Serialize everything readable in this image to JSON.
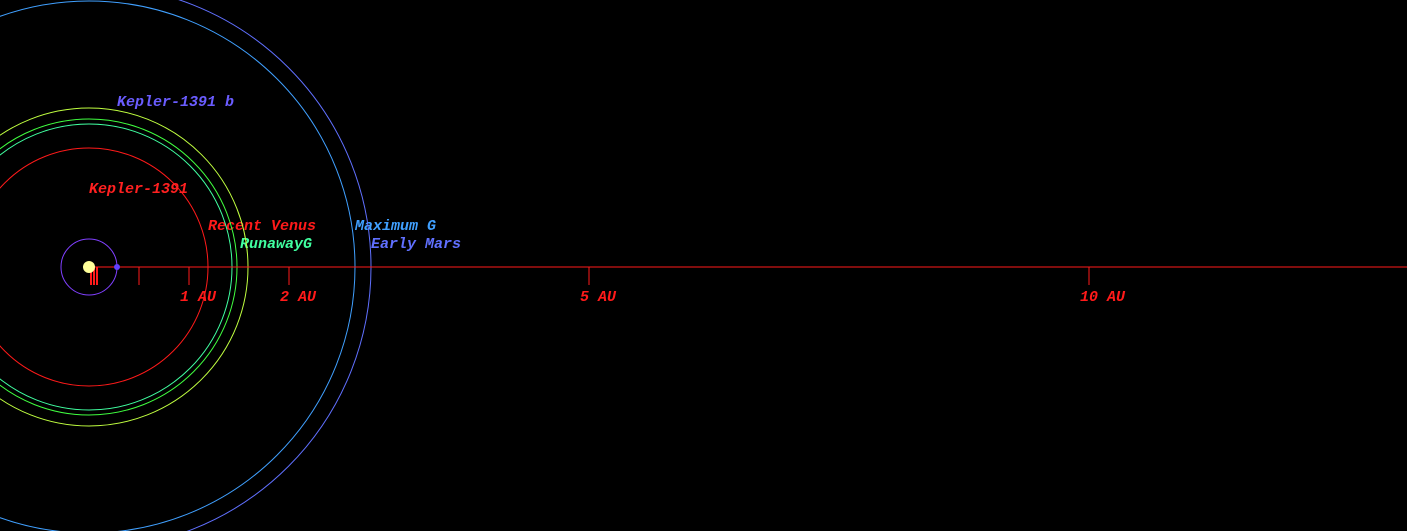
{
  "star": {
    "name": "Kepler-1391",
    "color": "#ff2020"
  },
  "planet": {
    "name": "Kepler-1391 b",
    "color": "#6a5cff",
    "orbit_au": 0.28
  },
  "zones": [
    {
      "label": "Recent Venus",
      "radius_au": 1.19,
      "color": "#ff1a1a"
    },
    {
      "label": "RunawayG",
      "radius_au": 1.43,
      "color": "#40ffa0"
    },
    {
      "radius_au": 1.48,
      "color": "#40ff40"
    },
    {
      "radius_au": 1.59,
      "color": "#c0ff40"
    },
    {
      "label": "Maximum G",
      "radius_au": 2.66,
      "color": "#40a0ff"
    },
    {
      "label": "Early Mars",
      "radius_au": 2.82,
      "color": "#6070ff"
    }
  ],
  "scale": {
    "ticks": [
      {
        "value": 1,
        "label": "1 AU"
      },
      {
        "value": 2,
        "label": "2 AU"
      },
      {
        "value": 5,
        "label": "5 AU"
      },
      {
        "value": 10,
        "label": "10 AU"
      }
    ],
    "minor_ticks": [
      0.5
    ],
    "color": "#ff1a1a"
  }
}
